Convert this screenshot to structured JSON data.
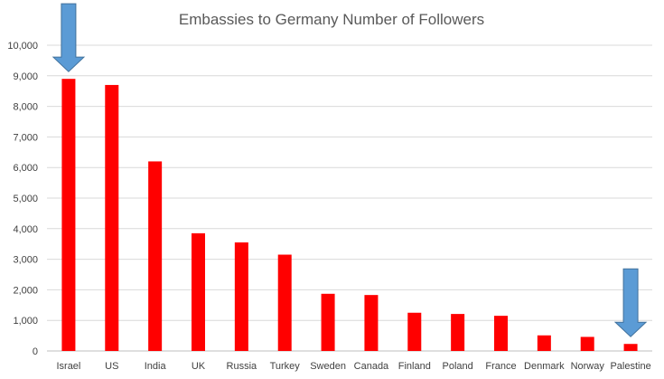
{
  "chart_data": {
    "type": "bar",
    "title": "Embassies to Germany Number of Followers",
    "xlabel": "",
    "ylabel": "",
    "categories": [
      "Israel",
      "US",
      "India",
      "UK",
      "Russia",
      "Turkey",
      "Sweden",
      "Canada",
      "Finland",
      "Poland",
      "France",
      "Denmark",
      "Norway",
      "Palestine"
    ],
    "values": [
      8900,
      8700,
      6200,
      3850,
      3550,
      3150,
      1870,
      1830,
      1250,
      1210,
      1150,
      510,
      460,
      230
    ],
    "ylim": [
      0,
      10000
    ],
    "yticks": [
      0,
      1000,
      2000,
      3000,
      4000,
      5000,
      6000,
      7000,
      8000,
      9000,
      10000
    ],
    "ytick_labels": [
      "0",
      "1,000",
      "2,000",
      "3,000",
      "4,000",
      "5,000",
      "6,000",
      "7,000",
      "8,000",
      "9,000",
      "10,000"
    ],
    "grid": true,
    "legend": "none",
    "colors": {
      "bar": "#ff0000",
      "arrow_fill": "#5b9bd5",
      "arrow_stroke": "#41719c",
      "grid": "#d9d9d9",
      "title": "#595959"
    },
    "annotations": [
      {
        "icon": "down-arrow-icon",
        "points_to": "Israel"
      },
      {
        "icon": "down-arrow-icon",
        "points_to": "Palestine"
      }
    ]
  }
}
